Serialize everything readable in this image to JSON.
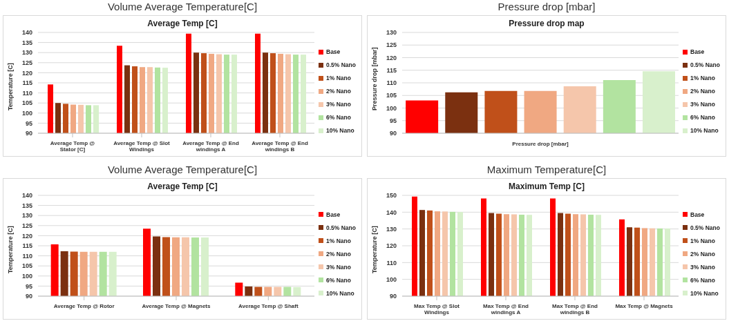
{
  "chart_data": [
    {
      "type": "bar",
      "title": "Volume Average Temperature[C]",
      "subtitle": "Average Temp [C]",
      "ylabel": "Temperature [C]",
      "categories": [
        "Average Temp @ Stator [C]",
        "Average Temp @ Slot Windings",
        "Average Temp @ End windings A",
        "Average Temp @ End windings B"
      ],
      "series": [
        {
          "name": "Base",
          "color": "#ff0000",
          "values": [
            114.2,
            133.4,
            139.4,
            139.4
          ]
        },
        {
          "name": "0.5% Nano",
          "color": "#7b3010",
          "values": [
            105,
            123.7,
            130,
            130
          ]
        },
        {
          "name": "1% Nano",
          "color": "#c0501a",
          "values": [
            104.6,
            123.2,
            129.7,
            129.7
          ]
        },
        {
          "name": "2% Nano",
          "color": "#f0a882",
          "values": [
            104.2,
            122.8,
            129.4,
            129.4
          ]
        },
        {
          "name": "3% Nano",
          "color": "#f5c6ab",
          "values": [
            104.1,
            122.8,
            129.2,
            129.2
          ]
        },
        {
          "name": "6% Nano",
          "color": "#b2e3a0",
          "values": [
            103.9,
            122.6,
            129,
            129
          ]
        },
        {
          "name": "10% Nano",
          "color": "#d8f0cc",
          "values": [
            103.9,
            122.5,
            129,
            129
          ]
        }
      ],
      "ylim": [
        90,
        140
      ],
      "yticks": [
        90,
        95,
        100,
        105,
        110,
        115,
        120,
        125,
        130,
        135,
        140
      ],
      "grid": "y",
      "legend": "right"
    },
    {
      "type": "bar",
      "title": "Pressure drop [mbar]",
      "subtitle": "Pressure drop map",
      "xlabel": "Pressure drop [mbar]",
      "ylabel": "Pressure drop [mbar]",
      "categories": [
        null,
        null,
        null,
        null,
        null,
        null,
        null
      ],
      "series": [
        {
          "name": "Base",
          "color": "#ff0000",
          "values": [
            103,
            null,
            null,
            null,
            null,
            null,
            null
          ]
        },
        {
          "name": "0.5% Nano",
          "color": "#7b3010",
          "values": [
            null,
            106.2,
            null,
            null,
            null,
            null,
            null
          ]
        },
        {
          "name": "1% Nano",
          "color": "#c0501a",
          "values": [
            null,
            null,
            106.8,
            null,
            null,
            null,
            null
          ]
        },
        {
          "name": "2% Nano",
          "color": "#f0a882",
          "values": [
            null,
            null,
            null,
            106.8,
            null,
            null,
            null
          ]
        },
        {
          "name": "3% Nano",
          "color": "#f5c6ab",
          "values": [
            null,
            null,
            null,
            null,
            108.6,
            null,
            null
          ]
        },
        {
          "name": "6% Nano",
          "color": "#b2e3a0",
          "values": [
            null,
            null,
            null,
            null,
            null,
            111.1,
            null
          ]
        },
        {
          "name": "10% Nano",
          "color": "#d8f0cc",
          "values": [
            null,
            null,
            null,
            null,
            null,
            null,
            114.6
          ]
        }
      ],
      "ylim": [
        90,
        130
      ],
      "yticks": [
        90,
        95,
        100,
        105,
        110,
        115,
        120,
        125,
        130
      ],
      "grid": "y",
      "legend": "right"
    },
    {
      "type": "bar",
      "title": "Volume Average Temperature[C]",
      "subtitle": "Average Temp [C]",
      "ylabel": "Temperature [C]",
      "categories": [
        "Average Temp @ Rotor",
        "Average Temp @ Magnets",
        "Average Temp @ Shaft"
      ],
      "series": [
        {
          "name": "Base",
          "color": "#ff0000",
          "values": [
            115.7,
            123.5,
            96.7
          ]
        },
        {
          "name": "0.5% Nano",
          "color": "#7b3010",
          "values": [
            112.3,
            119.6,
            94.8
          ]
        },
        {
          "name": "1% Nano",
          "color": "#c0501a",
          "values": [
            112.1,
            119.3,
            94.6
          ]
        },
        {
          "name": "2% Nano",
          "color": "#f0a882",
          "values": [
            112,
            119.2,
            94.6
          ]
        },
        {
          "name": "3% Nano",
          "color": "#f5c6ab",
          "values": [
            112,
            119.2,
            94.6
          ]
        },
        {
          "name": "6% Nano",
          "color": "#b2e3a0",
          "values": [
            112,
            119.1,
            94.6
          ]
        },
        {
          "name": "10% Nano",
          "color": "#d8f0cc",
          "values": [
            112,
            119.1,
            94.5
          ]
        }
      ],
      "ylim": [
        90,
        140
      ],
      "yticks": [
        90,
        95,
        100,
        105,
        110,
        115,
        120,
        125,
        130,
        135,
        140
      ],
      "grid": "y",
      "legend": "right"
    },
    {
      "type": "bar",
      "title": "Maximum Temperature[C]",
      "subtitle": "Maximum Temp [C]",
      "ylabel": "Temperature [C]",
      "categories": [
        "Max Temp @ Slot Windings",
        "Max Temp @ End windings A",
        "Max Temp @ End windings B",
        "Max Temp @ Magnets"
      ],
      "series": [
        {
          "name": "Base",
          "color": "#ff0000",
          "values": [
            149.3,
            148.2,
            148.2,
            135.7
          ]
        },
        {
          "name": "0.5% Nano",
          "color": "#7b3010",
          "values": [
            141.3,
            139.5,
            139.5,
            131
          ]
        },
        {
          "name": "1% Nano",
          "color": "#c0501a",
          "values": [
            141,
            139.1,
            139.1,
            130.8
          ]
        },
        {
          "name": "2% Nano",
          "color": "#f0a882",
          "values": [
            140.5,
            138.8,
            138.8,
            130.5
          ]
        },
        {
          "name": "3% Nano",
          "color": "#f5c6ab",
          "values": [
            140.4,
            138.7,
            138.7,
            130.4
          ]
        },
        {
          "name": "6% Nano",
          "color": "#b2e3a0",
          "values": [
            140.2,
            138.5,
            138.5,
            130.3
          ]
        },
        {
          "name": "10% Nano",
          "color": "#d8f0cc",
          "values": [
            140.1,
            138.4,
            138.4,
            130.3
          ]
        }
      ],
      "ylim": [
        90,
        150
      ],
      "yticks": [
        90,
        100,
        110,
        120,
        130,
        140,
        150
      ],
      "grid": "y",
      "legend": "right"
    }
  ]
}
